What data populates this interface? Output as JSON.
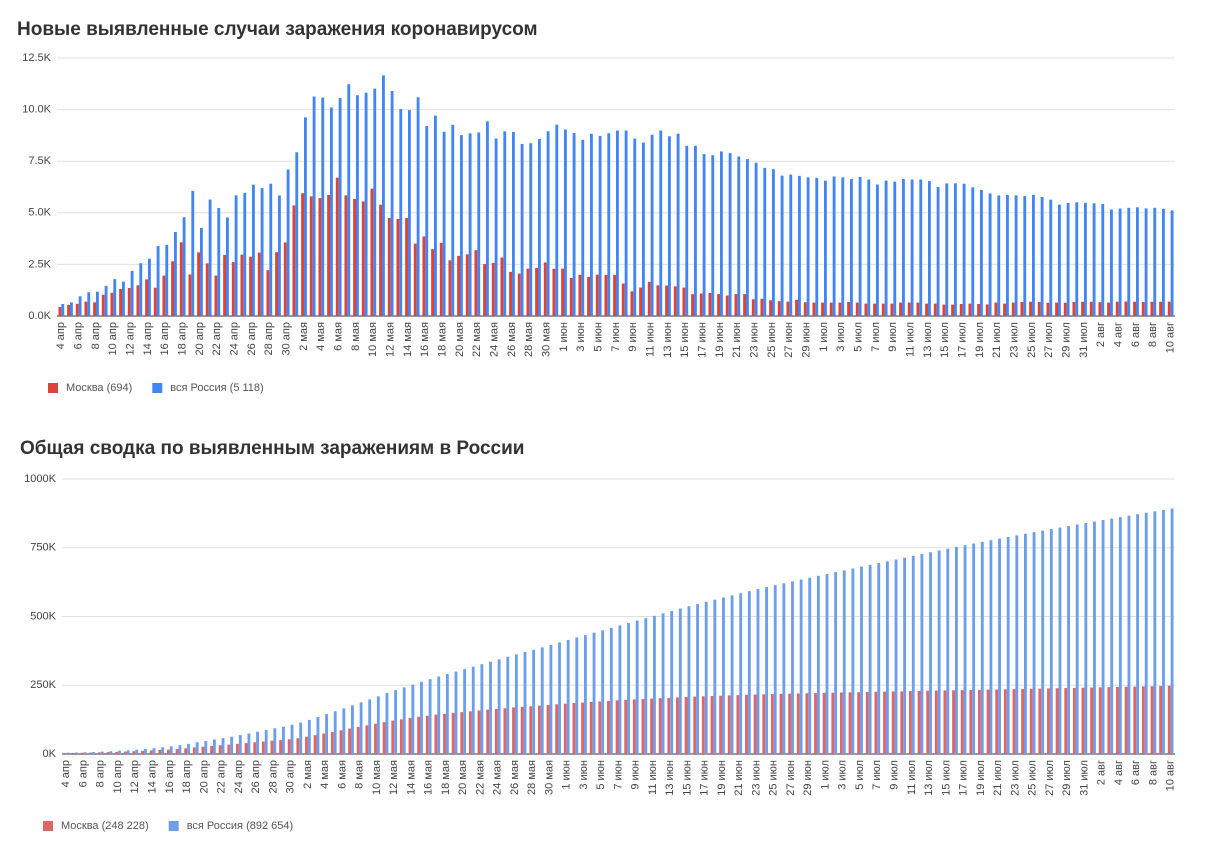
{
  "chart_data": [
    {
      "type": "bar",
      "title": "Новые выявленные случаи заражения коронавирусом",
      "categories": [
        "4 апр",
        null,
        "6 апр",
        null,
        "8 апр",
        null,
        "10 апр",
        null,
        "12 апр",
        null,
        "14 апр",
        null,
        "16 апр",
        null,
        "18 апр",
        null,
        "20 апр",
        null,
        "22 апр",
        null,
        "24 апр",
        null,
        "26 апр",
        null,
        "28 апр",
        null,
        "30 апр",
        null,
        "2 мая",
        null,
        "4 мая",
        null,
        "6 мая",
        null,
        "8 мая",
        null,
        "10 мая",
        null,
        "12 мая",
        null,
        "14 мая",
        null,
        "16 мая",
        null,
        "18 мая",
        null,
        "20 мая",
        null,
        "22 мая",
        null,
        "24 мая",
        null,
        "26 мая",
        null,
        "28 мая",
        null,
        "30 мая",
        null,
        "1 июн",
        null,
        "3 июн",
        null,
        "5 июн",
        null,
        "7 июн",
        null,
        "9 июн",
        null,
        "11 июн",
        null,
        "13 июн",
        null,
        "15 июн",
        null,
        "17 июн",
        null,
        "19 июн",
        null,
        "21 июн",
        null,
        "23 июн",
        null,
        "25 июн",
        null,
        "27 июн",
        null,
        "29 июн",
        null,
        "1 июл",
        null,
        "3 июл",
        null,
        "5 июл",
        null,
        "7 июл",
        null,
        "9 июл",
        null,
        "11 июл",
        null,
        "13 июл",
        null,
        "15 июл",
        null,
        "17 июл",
        null,
        "19 июл",
        null,
        "21 июл",
        null,
        "23 июл",
        null,
        "25 июл",
        null,
        "27 июл",
        null,
        "29 июл",
        null,
        "31 июл",
        null,
        "2 авг",
        null,
        "4 авг",
        null,
        "6 авг",
        null,
        "8 авг",
        null,
        "10 авг"
      ],
      "series": [
        {
          "name": "Москва (694)",
          "color": "#db4437",
          "values": [
            434,
            536,
            591,
            697,
            660,
            1030,
            1124,
            1306,
            1355,
            1489,
            1774,
            1370,
            1959,
            2649,
            3570,
            2012,
            3083,
            2548,
            1959,
            2957,
            2612,
            2971,
            2871,
            3075,
            2220,
            3093,
            3561,
            5358,
            5948,
            5795,
            5714,
            5858,
            6703,
            5846,
            5667,
            5551,
            6169,
            5392,
            4748,
            4703,
            4748,
            3505,
            3855,
            3238,
            3545,
            2699,
            2913,
            2988,
            3190,
            2516,
            2570,
            2830,
            2140,
            2054,
            2297,
            2332,
            2595,
            2286,
            2297,
            1842,
            1998,
            1895,
            2001,
            1992,
            1995,
            1572,
            1195,
            1379,
            1654,
            1486,
            1477,
            1436,
            1378,
            1058,
            1091,
            1115,
            1063,
            993,
            1064,
            1060,
            810,
            835,
            765,
            720,
            698,
            787,
            668,
            650,
            650,
            650,
            650,
            680,
            650,
            600,
            600,
            600,
            600,
            650,
            650,
            650,
            600,
            600,
            550,
            550,
            580,
            600,
            580,
            560,
            650,
            600,
            650,
            680,
            690,
            680,
            640,
            650,
            640,
            680,
            690,
            690,
            670,
            650,
            690,
            700,
            690,
            680,
            690,
            690,
            694
          ]
        },
        {
          "name": "вся Россия (5 118)",
          "color": "#4285f4",
          "values": [
            582,
            658,
            954,
            1154,
            1175,
            1459,
            1786,
            1667,
            2186,
            2558,
            2774,
            3388,
            3448,
            4070,
            4785,
            6060,
            4268,
            5642,
            5236,
            4774,
            5849,
            5966,
            6361,
            6198,
            6411,
            5841,
            7099,
            7933,
            9623,
            10633,
            10581,
            10102,
            10559,
            11231,
            10699,
            10817,
            11012,
            11656,
            10899,
            10028,
            9974,
            10598,
            9200,
            9709,
            8926,
            9263,
            8764,
            8849,
            8894,
            9434,
            8599,
            8946,
            8915,
            8338,
            8371,
            8572,
            8952,
            9268,
            9035,
            8863,
            8536,
            8831,
            8726,
            8855,
            8984,
            8985,
            8595,
            8404,
            8779,
            8987,
            8706,
            8835,
            8246,
            8248,
            7843,
            7790,
            7972,
            7889,
            7728,
            7600,
            7425,
            7176,
            7113,
            6800,
            6852,
            6791,
            6719,
            6693,
            6556,
            6760,
            6718,
            6632,
            6736,
            6611,
            6368,
            6562,
            6509,
            6635,
            6611,
            6615,
            6537,
            6248,
            6422,
            6428,
            6406,
            6234,
            6109,
            5940,
            5842,
            5862,
            5848,
            5811,
            5871,
            5765,
            5635,
            5395,
            5475,
            5509,
            5482,
            5462,
            5427,
            5159,
            5204,
            5241,
            5267,
            5212,
            5241,
            5189,
            5118
          ]
        }
      ],
      "ylim": [
        0,
        12500
      ],
      "yticks": [
        {
          "value": 0,
          "label": "0.0K"
        },
        {
          "value": 2500,
          "label": "2.5K"
        },
        {
          "value": 5000,
          "label": "5.0K"
        },
        {
          "value": 7500,
          "label": "7.5K"
        },
        {
          "value": 10000,
          "label": "10.0K"
        },
        {
          "value": 12500,
          "label": "12.5K"
        }
      ],
      "grid": true
    },
    {
      "type": "bar",
      "title": "Общая сводка по выявленным заражениям в России",
      "categories": [
        "4 апр",
        null,
        "6 апр",
        null,
        "8 апр",
        null,
        "10 апр",
        null,
        "12 апр",
        null,
        "14 апр",
        null,
        "16 апр",
        null,
        "18 апр",
        null,
        "20 апр",
        null,
        "22 апр",
        null,
        "24 апр",
        null,
        "26 апр",
        null,
        "28 апр",
        null,
        "30 апр",
        null,
        "2 мая",
        null,
        "4 мая",
        null,
        "6 мая",
        null,
        "8 мая",
        null,
        "10 мая",
        null,
        "12 мая",
        null,
        "14 мая",
        null,
        "16 мая",
        null,
        "18 мая",
        null,
        "20 мая",
        null,
        "22 мая",
        null,
        "24 мая",
        null,
        "26 мая",
        null,
        "28 мая",
        null,
        "30 мая",
        null,
        "1 июн",
        null,
        "3 июн",
        null,
        "5 июн",
        null,
        "7 июн",
        null,
        "9 июн",
        null,
        "11 июн",
        null,
        "13 июн",
        null,
        "15 июн",
        null,
        "17 июн",
        null,
        "19 июн",
        null,
        "21 июн",
        null,
        "23 июн",
        null,
        "25 июн",
        null,
        "27 июн",
        null,
        "29 июн",
        null,
        "1 июл",
        null,
        "3 июл",
        null,
        "5 июл",
        null,
        "7 июл",
        null,
        "9 июл",
        null,
        "11 июл",
        null,
        "13 июл",
        null,
        "15 июл",
        null,
        "17 июл",
        null,
        "19 июл",
        null,
        "21 июл",
        null,
        "23 июл",
        null,
        "25 июл",
        null,
        "27 июл",
        null,
        "29 июл",
        null,
        "31 июл",
        null,
        "2 авг",
        null,
        "4 авг",
        null,
        "6 авг",
        null,
        "8 авг",
        null,
        "10 авг"
      ],
      "series": [
        {
          "name": "Москва (248 228)",
          "color": "#e06666",
          "values": [
            3357,
            3893,
            4484,
            5181,
            5841,
            6871,
            7822,
            8852,
            10158,
            11513,
            13002,
            14776,
            16146,
            18105,
            20754,
            24324,
            26350,
            29433,
            31981,
            33940,
            36897,
            39509,
            42480,
            45351,
            48426,
            50646,
            53739,
            57300,
            62658,
            68606,
            74401,
            80115,
            85973,
            92676,
            98522,
            104189,
            109740,
            115909,
            121301,
            126004,
            130716,
            135464,
            138969,
            142824,
            146062,
            149607,
            152306,
            155200,
            158150,
            161350,
            163900,
            166450,
            169280,
            171420,
            173470,
            175820,
            178150,
            180740,
            183040,
            185340,
            187160,
            189150,
            191050,
            193050,
            195020,
            197010,
            198580,
            199780,
            201180,
            202880,
            204380,
            205880,
            207280,
            208680,
            209730,
            210830,
            211980,
            213080,
            214080,
            215180,
            216280,
            217080,
            217930,
            218680,
            219430,
            220130,
            220930,
            221630,
            222280,
            222930,
            223580,
            224230,
            224910,
            225560,
            226160,
            226760,
            227360,
            227960,
            228610,
            229260,
            229910,
            230510,
            231110,
            231660,
            232210,
            232790,
            233390,
            233970,
            234530,
            235180,
            235780,
            236430,
            237110,
            237800,
            238480,
            239120,
            239770,
            240410,
            241090,
            241780,
            242450,
            243100,
            243790,
            244490,
            245180,
            245860,
            246550,
            247534,
            248228
          ]
        },
        {
          "name": "вся Россия (892 654)",
          "color": "#6d9eeb",
          "values": [
            4731,
            5389,
            6343,
            7497,
            8672,
            10131,
            11917,
            13584,
            15770,
            18328,
            21102,
            24490,
            27938,
            32008,
            36793,
            42853,
            47121,
            52763,
            57999,
            62773,
            68622,
            74588,
            80949,
            87147,
            93558,
            99399,
            106498,
            114431,
            124054,
            134687,
            145268,
            155370,
            165929,
            177160,
            187859,
            198676,
            209688,
            221344,
            232243,
            242271,
            252245,
            262843,
            272043,
            281752,
            290678,
            299941,
            308705,
            317554,
            326448,
            335882,
            344481,
            353427,
            362342,
            370680,
            379051,
            387623,
            396575,
            405843,
            414878,
            423741,
            432277,
            441108,
            449834,
            458689,
            467673,
            476658,
            485253,
            493657,
            502436,
            511423,
            520129,
            528964,
            537210,
            545458,
            553301,
            561091,
            569063,
            576952,
            584680,
            592280,
            599705,
            606881,
            613994,
            620794,
            627646,
            634437,
            641156,
            647849,
            654405,
            661165,
            667883,
            674515,
            681251,
            687862,
            694230,
            700792,
            707301,
            713936,
            720547,
            727162,
            733699,
            739947,
            746369,
            752797,
            759203,
            765437,
            771546,
            777486,
            783328,
            789190,
            795038,
            800849,
            806720,
            812485,
            818120,
            823515,
            828990,
            834499,
            839981,
            845443,
            850870,
            856264,
            861423,
            866627,
            871894,
            877135,
            882347,
            887536,
            892654
          ]
        }
      ],
      "ylim": [
        0,
        1000000
      ],
      "yticks": [
        {
          "value": 0,
          "label": "0K"
        },
        {
          "value": 250000,
          "label": "250K"
        },
        {
          "value": 500000,
          "label": "500K"
        },
        {
          "value": 750000,
          "label": "750K"
        },
        {
          "value": 1000000,
          "label": "1000K"
        }
      ],
      "grid": true
    }
  ]
}
